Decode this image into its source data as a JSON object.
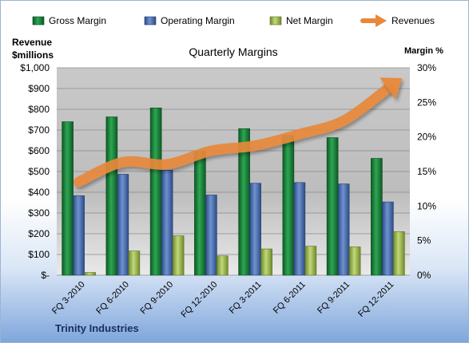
{
  "chart_data": {
    "type": "bar",
    "title": "Quarterly Margins",
    "company": "Trinity Industries",
    "ylabel_left": [
      "Revenue",
      "$millions"
    ],
    "ylabel_right": "Margin %",
    "categories": [
      "FQ 3-2010",
      "FQ 6-2010",
      "FQ 9-2010",
      "FQ 12-2010",
      "FQ 3-2011",
      "FQ 6-2011",
      "FQ 9-2011",
      "FQ 12-2011"
    ],
    "left_ticks": [
      "$-",
      "$100",
      "$200",
      "$300",
      "$400",
      "$500",
      "$600",
      "$700",
      "$800",
      "$900",
      "$1,000"
    ],
    "right_ticks": [
      "0%",
      "5%",
      "10%",
      "15%",
      "20%",
      "25%",
      "30%"
    ],
    "ylim_left": [
      0,
      1000
    ],
    "ylim_right": [
      0,
      30
    ],
    "legend_position": "top",
    "grid": true,
    "series": [
      {
        "name": "Gross Margin",
        "axis": "right",
        "kind": "bar",
        "color": "#1e7e3a",
        "values": [
          22.2,
          22.9,
          24.2,
          17.9,
          21.2,
          20.2,
          19.9,
          16.9
        ]
      },
      {
        "name": "Operating Margin",
        "axis": "right",
        "kind": "bar",
        "color": "#4a6fb0",
        "values": [
          11.5,
          14.6,
          15.2,
          11.6,
          13.3,
          13.4,
          13.2,
          10.6
        ]
      },
      {
        "name": "Net Margin",
        "axis": "right",
        "kind": "bar",
        "color": "#9ab44c",
        "values": [
          0.4,
          3.5,
          5.7,
          2.8,
          3.8,
          4.2,
          4.1,
          6.3
        ]
      },
      {
        "name": "Revenues",
        "axis": "left",
        "kind": "line",
        "color": "#e8883a",
        "values": [
          450,
          545,
          535,
          600,
          625,
          680,
          745,
          900
        ]
      }
    ]
  }
}
